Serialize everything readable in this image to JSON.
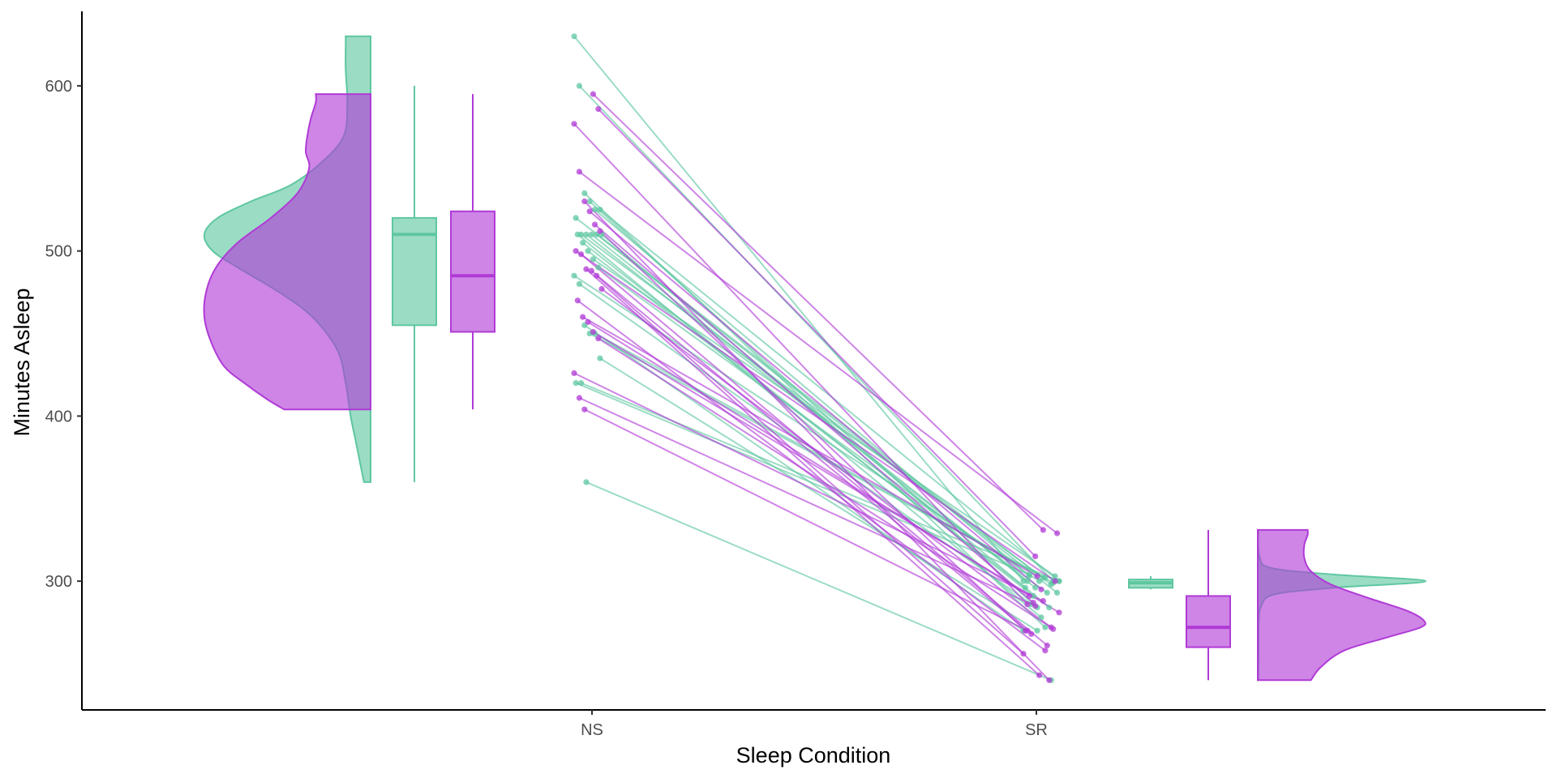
{
  "chart_data": {
    "type": "raincloud",
    "xlabel": "Sleep Condition",
    "ylabel": "Minutes Asleep",
    "categories": [
      "NS",
      "SR"
    ],
    "y_ticks": [
      300,
      400,
      500,
      600
    ],
    "ylim": [
      222,
      652
    ],
    "grid": false,
    "legend": "none",
    "colors": {
      "green": "#5ec7a0",
      "purple": "#b03ad6"
    },
    "series": [
      {
        "color_key": "green",
        "boxplots": {
          "NS": {
            "min": 360,
            "q1": 455,
            "median": 510,
            "q3": 520,
            "max": 600
          },
          "SR": {
            "min": 295,
            "q1": 296,
            "median": 299,
            "q3": 301,
            "max": 303
          }
        },
        "density": {
          "NS": [
            [
              360,
              0.04
            ],
            [
              370,
              0.06
            ],
            [
              385,
              0.09
            ],
            [
              400,
              0.12
            ],
            [
              420,
              0.15
            ],
            [
              440,
              0.2
            ],
            [
              460,
              0.35
            ],
            [
              475,
              0.55
            ],
            [
              490,
              0.8
            ],
            [
              500,
              0.95
            ],
            [
              510,
              1.0
            ],
            [
              520,
              0.92
            ],
            [
              530,
              0.72
            ],
            [
              540,
              0.48
            ],
            [
              555,
              0.28
            ],
            [
              570,
              0.16
            ],
            [
              590,
              0.14
            ],
            [
              610,
              0.15
            ],
            [
              625,
              0.15
            ],
            [
              630,
              0.15
            ]
          ],
          "SR": [
            [
              240,
              0.003
            ],
            [
              260,
              0.005
            ],
            [
              275,
              0.006
            ],
            [
              285,
              0.02
            ],
            [
              292,
              0.1
            ],
            [
              296,
              0.45
            ],
            [
              300,
              1.0
            ],
            [
              304,
              0.45
            ],
            [
              308,
              0.08
            ],
            [
              315,
              0.01
            ],
            [
              331,
              0.003
            ]
          ]
        },
        "pairs": [
          [
            630,
            300
          ],
          [
            600,
            300
          ],
          [
            535,
            272
          ],
          [
            530,
            284
          ],
          [
            525,
            303
          ],
          [
            525,
            300
          ],
          [
            520,
            298
          ],
          [
            510,
            302
          ],
          [
            510,
            296
          ],
          [
            510,
            300
          ],
          [
            510,
            293
          ],
          [
            510,
            284
          ],
          [
            510,
            278
          ],
          [
            505,
            291
          ],
          [
            500,
            296
          ],
          [
            495,
            303
          ],
          [
            490,
            293
          ],
          [
            485,
            300
          ],
          [
            480,
            286
          ],
          [
            455,
            270
          ],
          [
            450,
            299
          ],
          [
            450,
            302
          ],
          [
            435,
            270
          ],
          [
            420,
            304
          ],
          [
            420,
            300
          ],
          [
            360,
            240
          ]
        ]
      },
      {
        "color_key": "purple",
        "boxplots": {
          "NS": {
            "min": 404,
            "q1": 451,
            "median": 485,
            "q3": 524,
            "max": 595
          },
          "SR": {
            "min": 240,
            "q1": 260,
            "median": 272,
            "q3": 291,
            "max": 331
          }
        },
        "density": {
          "NS": [
            [
              404,
              0.52
            ],
            [
              410,
              0.62
            ],
            [
              420,
              0.76
            ],
            [
              430,
              0.88
            ],
            [
              445,
              0.96
            ],
            [
              460,
              1.0
            ],
            [
              475,
              0.99
            ],
            [
              490,
              0.93
            ],
            [
              505,
              0.8
            ],
            [
              520,
              0.6
            ],
            [
              535,
              0.44
            ],
            [
              550,
              0.37
            ],
            [
              560,
              0.39
            ],
            [
              570,
              0.38
            ],
            [
              580,
              0.36
            ],
            [
              590,
              0.33
            ],
            [
              595,
              0.33
            ]
          ],
          "SR": [
            [
              240,
              0.32
            ],
            [
              248,
              0.38
            ],
            [
              258,
              0.52
            ],
            [
              266,
              0.78
            ],
            [
              272,
              0.98
            ],
            [
              276,
              1.0
            ],
            [
              282,
              0.9
            ],
            [
              290,
              0.66
            ],
            [
              298,
              0.44
            ],
            [
              306,
              0.32
            ],
            [
              314,
              0.28
            ],
            [
              322,
              0.28
            ],
            [
              328,
              0.3
            ],
            [
              331,
              0.3
            ]
          ]
        },
        "pairs": [
          [
            595,
            331
          ],
          [
            586,
            315
          ],
          [
            577,
            286
          ],
          [
            548,
            329
          ],
          [
            530,
            240
          ],
          [
            524,
            295
          ],
          [
            516,
            287
          ],
          [
            512,
            270
          ],
          [
            500,
            300
          ],
          [
            498,
            261
          ],
          [
            489,
            243
          ],
          [
            488,
            268
          ],
          [
            485,
            256
          ],
          [
            477,
            271
          ],
          [
            470,
            258
          ],
          [
            460,
            303
          ],
          [
            457,
            291
          ],
          [
            451,
            281
          ],
          [
            447,
            272
          ],
          [
            426,
            288
          ],
          [
            411,
            285
          ],
          [
            404,
            270
          ]
        ]
      }
    ]
  }
}
